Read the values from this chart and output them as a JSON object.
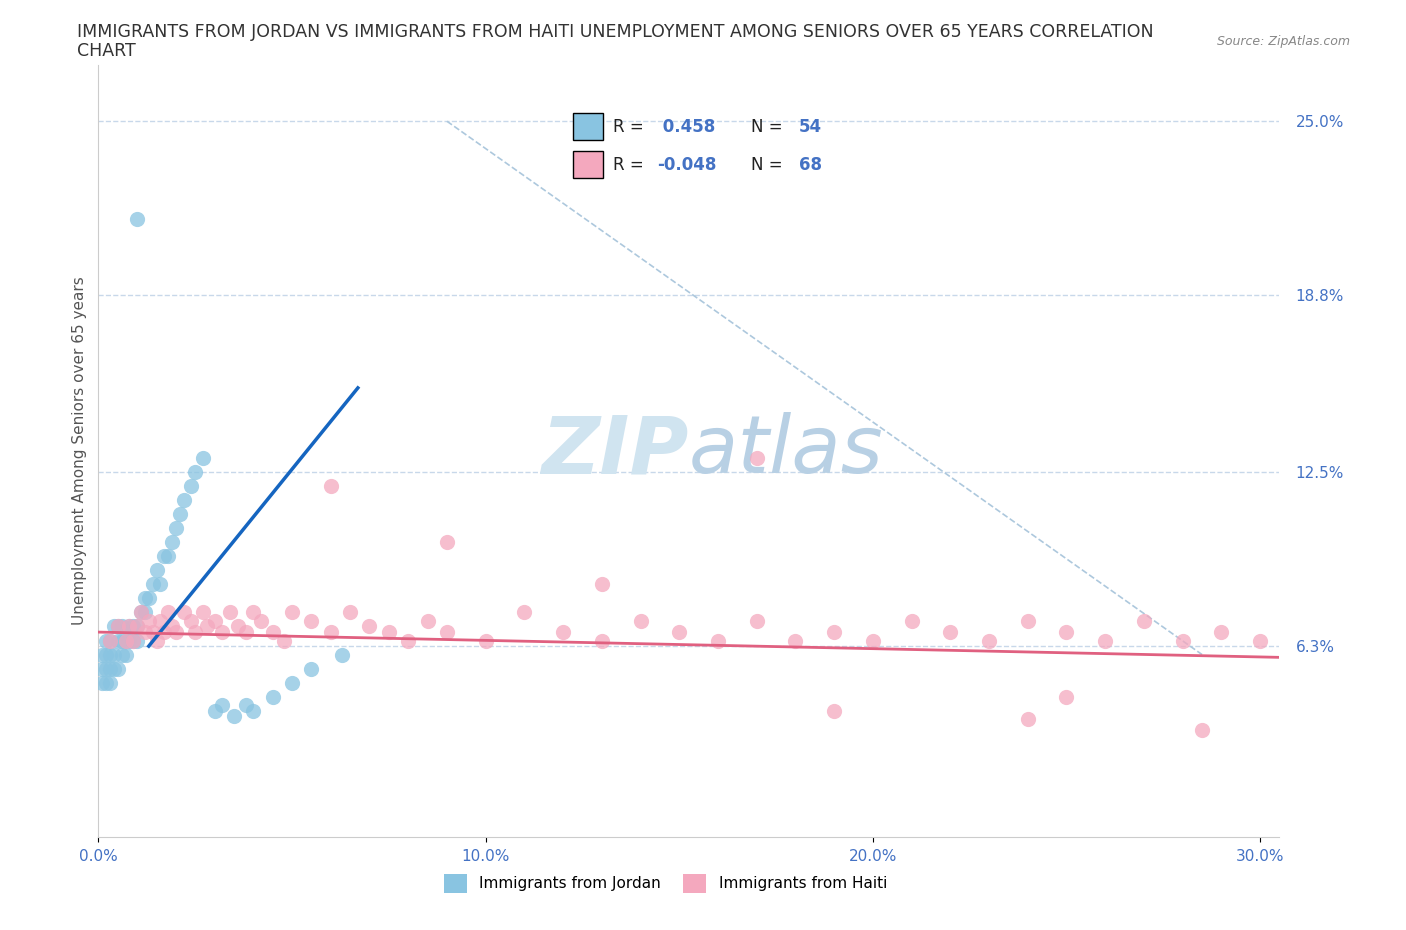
{
  "title_line1": "IMMIGRANTS FROM JORDAN VS IMMIGRANTS FROM HAITI UNEMPLOYMENT AMONG SENIORS OVER 65 YEARS CORRELATION",
  "title_line2": "CHART",
  "source": "Source: ZipAtlas.com",
  "ylabel": "Unemployment Among Seniors over 65 years",
  "xlim": [
    0.0,
    0.305
  ],
  "ylim": [
    -0.005,
    0.27
  ],
  "yticks": [
    0.063,
    0.125,
    0.188,
    0.25
  ],
  "ytick_labels": [
    "6.3%",
    "12.5%",
    "18.8%",
    "25.0%"
  ],
  "xticks": [
    0.0,
    0.1,
    0.2,
    0.3
  ],
  "xtick_labels": [
    "0.0%",
    "10.0%",
    "20.0%",
    "30.0%"
  ],
  "jordan_R": 0.458,
  "jordan_N": 54,
  "haiti_R": -0.048,
  "haiti_N": 68,
  "jordan_color": "#89c4e1",
  "haiti_color": "#f4a8be",
  "jordan_line_color": "#1565c0",
  "haiti_line_color": "#e06080",
  "background_color": "#ffffff",
  "grid_color": "#c8d8ea",
  "title_fontsize": 12.5,
  "axis_label_fontsize": 11,
  "tick_fontsize": 11,
  "legend_fontsize": 12,
  "watermark": "ZIPatlas",
  "watermark_color": "#d0e4f0"
}
